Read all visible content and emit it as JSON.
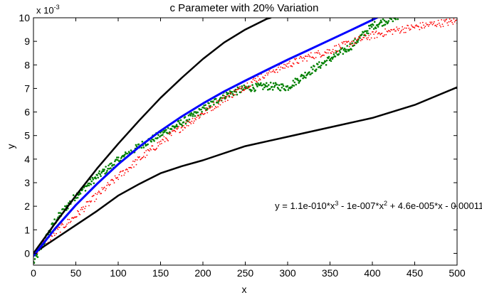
{
  "chart_data": {
    "type": "scatter",
    "title": "c Parameter with 20% Variation",
    "xlabel": "x",
    "ylabel": "y",
    "y_multiplier_label": "x 10",
    "y_multiplier_exponent": "-3",
    "xlim": [
      0,
      500
    ],
    "ylim": [
      -0.5,
      10
    ],
    "xticks": [
      0,
      50,
      100,
      150,
      200,
      250,
      300,
      350,
      400,
      450,
      500
    ],
    "yticks": [
      0,
      1,
      2,
      3,
      4,
      5,
      6,
      7,
      8,
      9,
      10
    ],
    "grid": false,
    "legend": "none",
    "annotation": {
      "parts": [
        {
          "t": "y = 1.1e-010*x",
          "sup": "3"
        },
        {
          "t": " - 1e-007*x",
          "sup": "2"
        },
        {
          "t": " + 4.6e-005*x - 0.00011",
          "sup": ""
        }
      ],
      "x": 285,
      "y": 2.0
    },
    "series": [
      {
        "kind": "line",
        "color": "#000000",
        "x": [
          0,
          25,
          50,
          75,
          100,
          125,
          150,
          175,
          200,
          225,
          250,
          275,
          280
        ],
        "y": [
          0.0,
          1.25,
          2.45,
          3.6,
          4.65,
          5.65,
          6.6,
          7.45,
          8.25,
          8.95,
          9.5,
          9.95,
          10.0
        ]
      },
      {
        "kind": "line",
        "color": "#000000",
        "x": [
          0,
          25,
          50,
          75,
          100,
          125,
          150,
          175,
          200,
          250,
          300,
          350,
          400,
          450,
          500
        ],
        "y": [
          0.0,
          0.6,
          1.2,
          1.8,
          2.45,
          2.95,
          3.4,
          3.7,
          3.95,
          4.55,
          4.95,
          5.35,
          5.75,
          6.3,
          7.05
        ]
      },
      {
        "kind": "line",
        "color": "#0000ff",
        "x": [
          0,
          25,
          50,
          75,
          100,
          125,
          150,
          175,
          200,
          225,
          250,
          275,
          300,
          325,
          350,
          375,
          400,
          425,
          437
        ],
        "y": [
          -0.11,
          1.03,
          2.05,
          2.95,
          3.78,
          4.53,
          5.2,
          5.81,
          6.36,
          6.87,
          7.33,
          7.78,
          8.22,
          8.64,
          9.06,
          9.48,
          9.91,
          10.35,
          10.57
        ]
      },
      {
        "kind": "scatter",
        "color": "#008000",
        "x": [
          0,
          25,
          50,
          75,
          100,
          125,
          150,
          175,
          200,
          225,
          250,
          275,
          300,
          325,
          350,
          375,
          400,
          425,
          430
        ],
        "y": [
          -0.4,
          1.35,
          2.45,
          3.25,
          3.95,
          4.55,
          5.05,
          5.55,
          6.1,
          6.7,
          7.0,
          7.1,
          7.05,
          7.7,
          8.25,
          8.8,
          9.65,
          10.0,
          10.0
        ]
      },
      {
        "kind": "scatter",
        "color": "#ff0000",
        "x": [
          0,
          25,
          50,
          75,
          100,
          125,
          150,
          175,
          200,
          225,
          250,
          275,
          300,
          325,
          350,
          375,
          400,
          425,
          450,
          475,
          500
        ],
        "y": [
          0.0,
          0.85,
          1.6,
          2.45,
          3.25,
          4.0,
          4.7,
          5.35,
          5.95,
          6.55,
          7.1,
          7.65,
          8.0,
          8.35,
          8.6,
          8.95,
          9.25,
          9.45,
          9.6,
          9.75,
          9.85
        ]
      }
    ]
  }
}
